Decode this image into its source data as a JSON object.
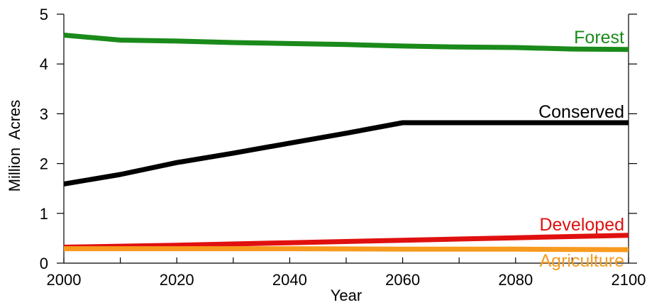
{
  "chart_data": {
    "type": "line",
    "title": "",
    "xlabel": "Year",
    "ylabel": "Million  Acres",
    "xlim": [
      2000,
      2100
    ],
    "ylim": [
      0,
      5
    ],
    "x_ticks": [
      "2000",
      "2020",
      "2040",
      "2060",
      "2080",
      "2100"
    ],
    "y_ticks": [
      "0",
      "1",
      "2",
      "3",
      "4",
      "5"
    ],
    "grid": false,
    "legend": "inline labels at right end of each line",
    "series": [
      {
        "name": "Forest",
        "color": "#1a8a1a",
        "x": [
          2000,
          2010,
          2020,
          2030,
          2040,
          2050,
          2060,
          2070,
          2080,
          2090,
          2100
        ],
        "y": [
          4.58,
          4.48,
          4.46,
          4.43,
          4.41,
          4.39,
          4.36,
          4.34,
          4.33,
          4.3,
          4.29
        ]
      },
      {
        "name": "Conserved",
        "color": "#000000",
        "x": [
          2000,
          2010,
          2020,
          2030,
          2040,
          2050,
          2060,
          2070,
          2080,
          2090,
          2100
        ],
        "y": [
          1.59,
          1.78,
          2.02,
          2.21,
          2.41,
          2.61,
          2.82,
          2.82,
          2.82,
          2.82,
          2.82
        ]
      },
      {
        "name": "Developed",
        "color": "#e01010",
        "x": [
          2000,
          2020,
          2040,
          2060,
          2080,
          2100
        ],
        "y": [
          0.32,
          0.36,
          0.41,
          0.46,
          0.51,
          0.56
        ]
      },
      {
        "name": "Agriculture",
        "color": "#f79a1e",
        "x": [
          2000,
          2020,
          2040,
          2060,
          2080,
          2100
        ],
        "y": [
          0.29,
          0.29,
          0.29,
          0.28,
          0.28,
          0.27
        ]
      }
    ]
  }
}
